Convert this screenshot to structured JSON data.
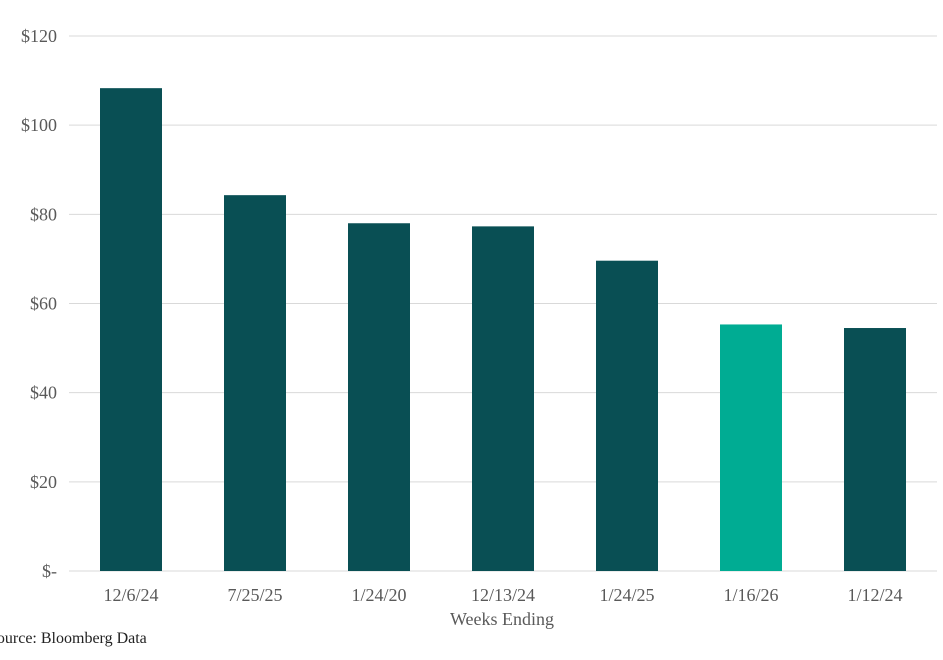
{
  "chart_data": {
    "type": "bar",
    "title": "",
    "xlabel": "Weeks Ending",
    "ylabel": "",
    "categories": [
      "12/6/24",
      "7/25/25",
      "1/24/20",
      "12/13/24",
      "1/24/25",
      "1/16/26",
      "1/12/24"
    ],
    "values": [
      108.3,
      84.3,
      78.0,
      77.3,
      69.6,
      55.3,
      54.5
    ],
    "highlight_index": 5,
    "ylim": [
      0,
      120
    ],
    "yticks": [
      0,
      20,
      40,
      60,
      80,
      100,
      120
    ],
    "ytick_labels": [
      "$-",
      "$20",
      "$40",
      "$60",
      "$80",
      "$100",
      "$120"
    ],
    "grid": true,
    "legend": "none",
    "colors": {
      "bar": "#094F54",
      "highlight": "#00AC93",
      "grid": "#D9D9D9",
      "text": "#595959"
    }
  },
  "source": "Source: Bloomberg Data"
}
